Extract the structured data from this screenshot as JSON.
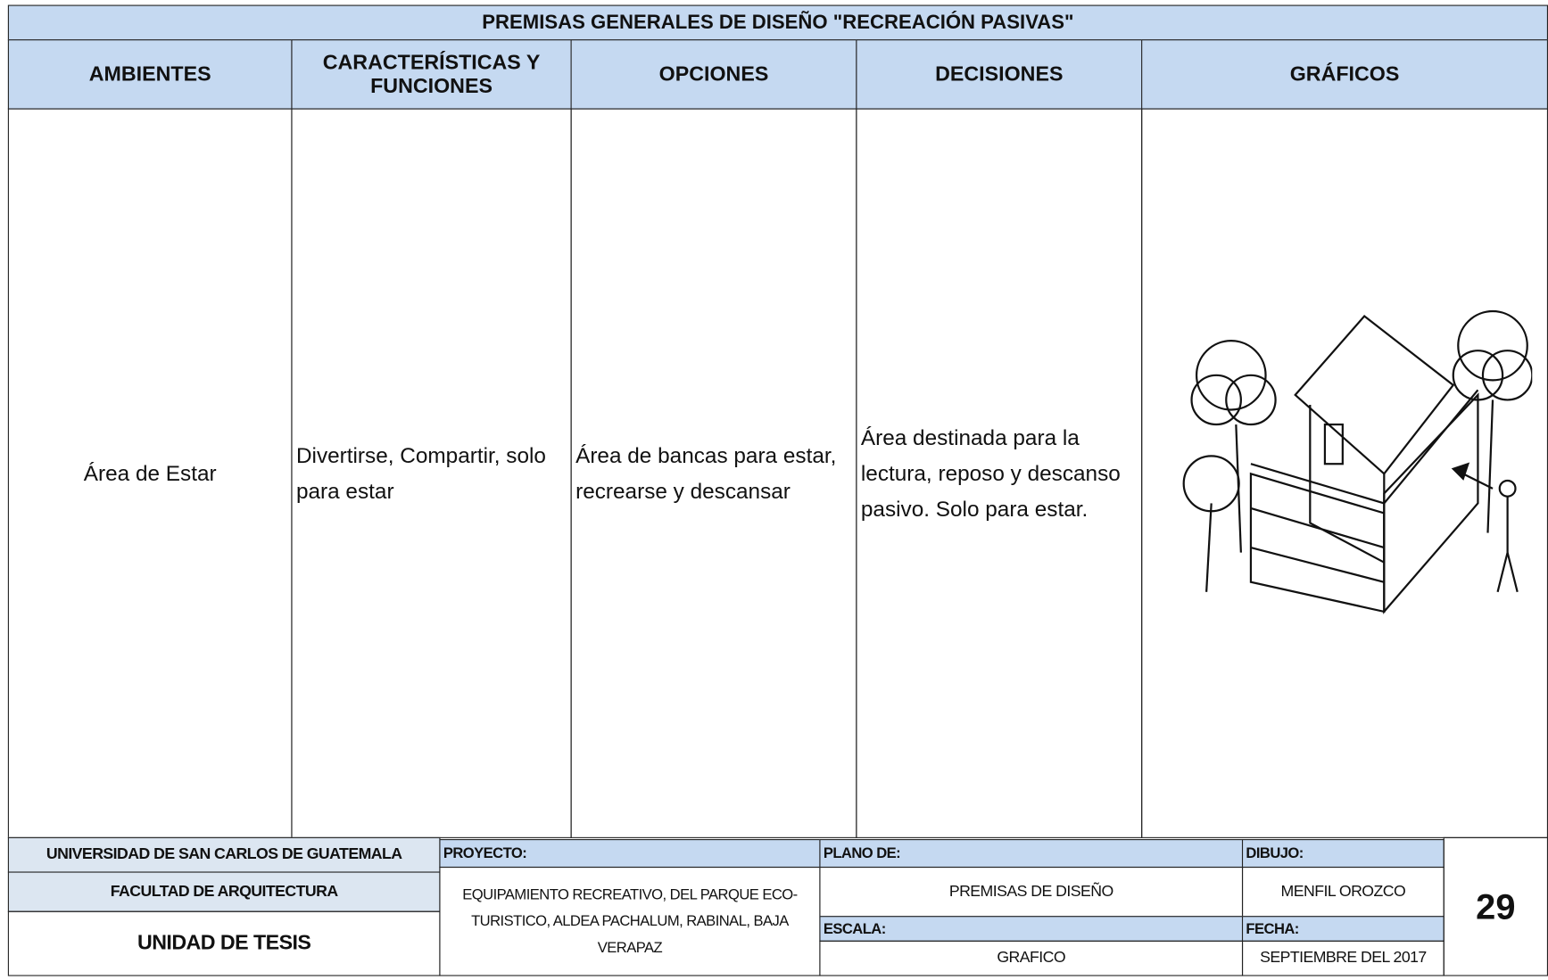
{
  "title": "PREMISAS GENERALES DE DISEÑO \"RECREACIÓN PASIVAS\"",
  "table": {
    "headers": [
      "AMBIENTES",
      "CARACTERÍSTICAS Y FUNCIONES",
      "OPCIONES",
      "DECISIONES",
      "GRÁFICOS"
    ],
    "rows": [
      [
        "Área de Estar",
        "Divertirse, Compartir, solo para estar",
        "Área de bancas para estar, recrearse y descansar",
        "Área destinada para la lectura, reposo y descanso pasivo. Solo para estar."
      ]
    ]
  },
  "footer": {
    "university": "UNIVERSIDAD DE SAN CARLOS DE GUATEMALA",
    "faculty": "FACULTAD DE ARQUITECTURA",
    "unit": "UNIDAD DE TESIS",
    "project_label": "PROYECTO:",
    "project": "EQUIPAMIENTO RECREATIVO, DEL PARQUE ECO-TURISTICO, ALDEA PACHALUM, RABINAL, BAJA VERAPAZ",
    "plan_label": "PLANO DE:",
    "plan": "PREMISAS DE DISEÑO",
    "scale_label": "ESCALA:",
    "scale": "GRAFICO",
    "drawing_label": "DIBUJO:",
    "drawing": "MENFIL OROZCO",
    "date_label": "FECHA:",
    "date": "SEPTIEMBRE DEL 2017",
    "page": "29"
  }
}
